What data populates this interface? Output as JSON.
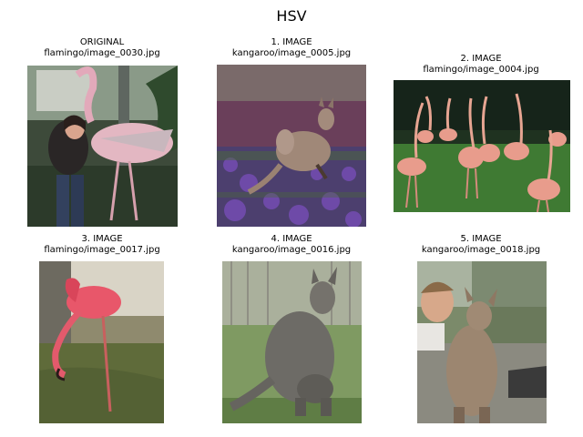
{
  "figure": {
    "title": "HSV",
    "panels": [
      {
        "label": "ORIGINAL",
        "filename": "flamingo/image_0030.jpg",
        "subject": "flamingo"
      },
      {
        "label": "1. IMAGE",
        "filename": "kangaroo/image_0005.jpg",
        "subject": "kangaroo"
      },
      {
        "label": "2. IMAGE",
        "filename": "flamingo/image_0004.jpg",
        "subject": "flamingo"
      },
      {
        "label": "3. IMAGE",
        "filename": "flamingo/image_0017.jpg",
        "subject": "flamingo"
      },
      {
        "label": "4. IMAGE",
        "filename": "kangaroo/image_0016.jpg",
        "subject": "kangaroo"
      },
      {
        "label": "5. IMAGE",
        "filename": "kangaroo/image_0018.jpg",
        "subject": "kangaroo"
      }
    ]
  }
}
